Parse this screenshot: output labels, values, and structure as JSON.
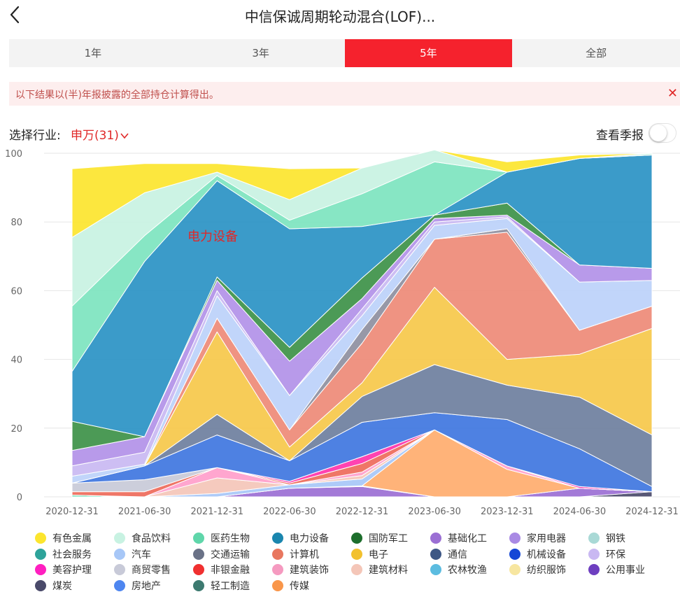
{
  "header": {
    "title": "中信保诚周期轮动混合(LOF)...",
    "back_icon": "chevron-left-icon"
  },
  "tabs": [
    {
      "label": "1年",
      "active": false
    },
    {
      "label": "3年",
      "active": false
    },
    {
      "label": "5年",
      "active": true
    },
    {
      "label": "全部",
      "active": false
    }
  ],
  "notice": {
    "text": "以下结果以(半)年报披露的全部持仓计算得出。",
    "close_icon": "close-icon"
  },
  "filter": {
    "label": "选择行业:",
    "value": "申万(31)",
    "dropdown_icon": "chevron-down-icon",
    "season_label": "查看季报",
    "season_toggle_on": false
  },
  "colors": {
    "accent": "#f5222d",
    "tab_bg": "#f3f3f3",
    "notice_bg": "#fdeeee"
  },
  "chart_data": {
    "type": "area",
    "stacked": true,
    "ylim": [
      0,
      100
    ],
    "yticks": [
      "100",
      "80",
      "60",
      "40",
      "20",
      "0"
    ],
    "x": [
      "2020-12-31",
      "2021-06-30",
      "2021-12-31",
      "2022-06-30",
      "2022-12-31",
      "2023-06-30",
      "2023-12-31",
      "2024-06-30",
      "2024-12-31"
    ],
    "annotation": "电力设备",
    "grid": true,
    "series": [
      {
        "name": "煤炭",
        "color": "#4a4a6a",
        "values": [
          0,
          0,
          0,
          0,
          0,
          0,
          0,
          0,
          1.5
        ]
      },
      {
        "name": "基础化工",
        "color": "#9b6fd4",
        "values": [
          0,
          0,
          0,
          2.5,
          3,
          0,
          0,
          2.5,
          0
        ]
      },
      {
        "name": "医药生物",
        "color": "#3ed6a0",
        "values": [
          0.5,
          0,
          0,
          0,
          0.2,
          0,
          0,
          0,
          0
        ]
      },
      {
        "name": "传媒",
        "color": "#ffad6e",
        "values": [
          0,
          0,
          0,
          0,
          0,
          19.5,
          8,
          0,
          0
        ]
      },
      {
        "name": "汽车",
        "color": "#a7c7f7",
        "values": [
          0,
          0,
          1,
          1,
          2,
          0,
          0,
          0,
          0
        ]
      },
      {
        "name": "建筑材料",
        "color": "#f4c6b8",
        "values": [
          0,
          0,
          4.5,
          0,
          1,
          0,
          0,
          0,
          0
        ]
      },
      {
        "name": "美容护理",
        "color": "#ff9ecb",
        "values": [
          0,
          0,
          3,
          0,
          1,
          0,
          1,
          0,
          0
        ]
      },
      {
        "name": "计算机",
        "color": "#ee6a5a",
        "values": [
          1,
          1.5,
          0,
          0.5,
          2.5,
          0,
          0,
          0,
          0
        ]
      },
      {
        "name": "通信",
        "color": "#ff33aa",
        "values": [
          0,
          0,
          0,
          0.5,
          2,
          0,
          0,
          0.5,
          0
        ]
      },
      {
        "name": "交通运输",
        "color": "#c8cad8",
        "values": [
          2.5,
          3.5,
          0,
          0,
          0,
          0,
          0,
          0,
          0
        ]
      },
      {
        "name": "电力设备",
        "color": "#3f76e0",
        "values": [
          0,
          4,
          9.5,
          6,
          10,
          5,
          13.5,
          11,
          1.5
        ]
      },
      {
        "name": "钢铁",
        "color": "#6e7f9e",
        "values": [
          0,
          0,
          6,
          0,
          7.5,
          14,
          10,
          15,
          15
        ]
      },
      {
        "name": "电子",
        "color": "#f6c84a",
        "values": [
          0,
          0,
          24,
          4,
          4,
          22.5,
          7.5,
          12.5,
          31
        ]
      },
      {
        "name": "公用事业",
        "color": "#ee8a77",
        "values": [
          0,
          0,
          4,
          5,
          11.5,
          14,
          37,
          7,
          6.5
        ]
      },
      {
        "name": "机械设备",
        "color": "#8e8fa0",
        "values": [
          0,
          0,
          0,
          0,
          4,
          0,
          1,
          0,
          0
        ]
      },
      {
        "name": "家用电器",
        "color": "#bcd1fa",
        "values": [
          2,
          0.5,
          6.5,
          10,
          4,
          4,
          3,
          14,
          7.5
        ]
      },
      {
        "name": "环保",
        "color": "#c9b8f2",
        "values": [
          3,
          3.5,
          1.5,
          0,
          2,
          1,
          0.5,
          0,
          0
        ]
      },
      {
        "name": "纺织服饰",
        "color": "#b291e8",
        "values": [
          4.5,
          4.5,
          3,
          10,
          3,
          1,
          0.5,
          5,
          3.5
        ]
      },
      {
        "name": "国防军工",
        "color": "#3d9148",
        "values": [
          8.5,
          0,
          1,
          4,
          6,
          1,
          3.5,
          0,
          0
        ]
      },
      {
        "name": "非银金融",
        "color": "#2a93c4",
        "values": [
          14.5,
          51,
          28,
          34.5,
          15,
          0,
          9,
          31,
          33
        ]
      },
      {
        "name": "房地产",
        "color": "#7de4bf",
        "values": [
          19,
          7.5,
          1.5,
          2.5,
          9.5,
          15.5,
          0,
          0,
          0
        ]
      },
      {
        "name": "食品饮料",
        "color": "#c8f2e2",
        "values": [
          20,
          12.5,
          1,
          6,
          7.5,
          3.5,
          0,
          0,
          0.5
        ]
      },
      {
        "name": "有色金属",
        "color": "#fce52e",
        "values": [
          20,
          8.5,
          2.5,
          9,
          0,
          0,
          3,
          1,
          0
        ]
      }
    ],
    "legend": [
      {
        "name": "有色金属",
        "color": "#fce52e"
      },
      {
        "name": "食品饮料",
        "color": "#c8f2e2"
      },
      {
        "name": "医药生物",
        "color": "#5fd6aa"
      },
      {
        "name": "电力设备",
        "color": "#1a86ae"
      },
      {
        "name": "国防军工",
        "color": "#1d6e2c"
      },
      {
        "name": "基础化工",
        "color": "#9b6fd4"
      },
      {
        "name": "家用电器",
        "color": "#a98ae4"
      },
      {
        "name": "钢铁",
        "color": "#a9d9d6"
      },
      {
        "name": "社会服务",
        "color": "#2ea39a"
      },
      {
        "name": "汽车",
        "color": "#a7c7f7"
      },
      {
        "name": "交通运输",
        "color": "#6a7287"
      },
      {
        "name": "计算机",
        "color": "#e8775f"
      },
      {
        "name": "电子",
        "color": "#f2c12e"
      },
      {
        "name": "通信",
        "color": "#3d5785"
      },
      {
        "name": "机械设备",
        "color": "#1446d6"
      },
      {
        "name": "环保",
        "color": "#c9b8f2"
      },
      {
        "name": "美容护理",
        "color": "#ff1fc0"
      },
      {
        "name": "商贸零售",
        "color": "#c8cad8"
      },
      {
        "name": "非银金融",
        "color": "#f03030"
      },
      {
        "name": "建筑装饰",
        "color": "#f59ac0"
      },
      {
        "name": "建筑材料",
        "color": "#f4c6b8"
      },
      {
        "name": "农林牧渔",
        "color": "#5cbce0"
      },
      {
        "name": "纺织服饰",
        "color": "#f7e6a0"
      },
      {
        "name": "公用事业",
        "color": "#6e3fc0"
      },
      {
        "name": "煤炭",
        "color": "#4a4a6a"
      },
      {
        "name": "房地产",
        "color": "#4e86f0"
      },
      {
        "name": "轻工制造",
        "color": "#3d7a70"
      },
      {
        "name": "传媒",
        "color": "#f9964a"
      }
    ]
  }
}
